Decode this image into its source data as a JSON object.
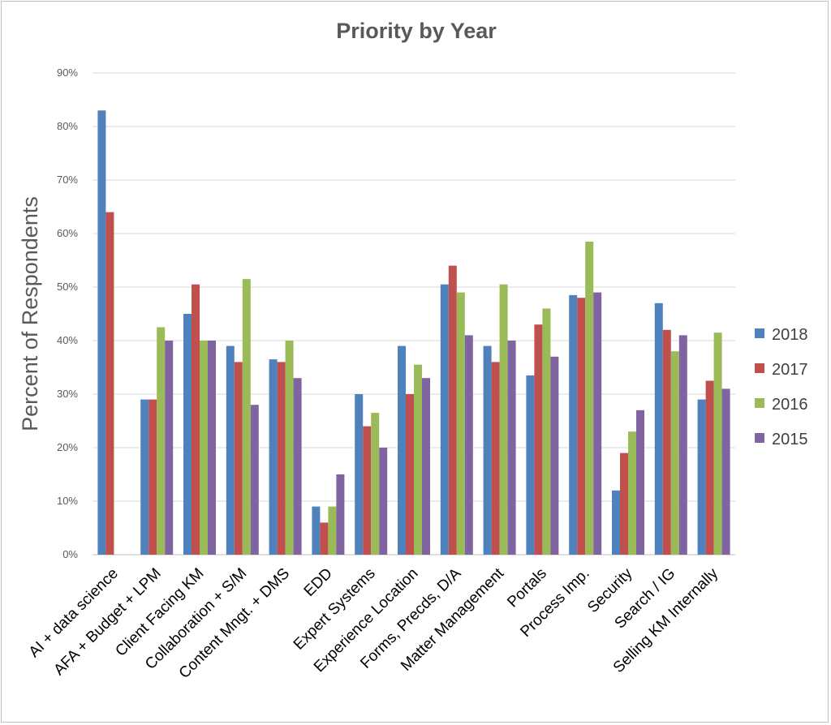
{
  "chart_data": {
    "type": "bar",
    "title": "Priority by Year",
    "ylabel": "Percent of Respondents",
    "xlabel": "",
    "ylim": [
      0,
      90
    ],
    "yticks": [
      "0%",
      "10%",
      "20%",
      "30%",
      "40%",
      "50%",
      "60%",
      "70%",
      "80%",
      "90%"
    ],
    "grid": true,
    "legend_position": "right",
    "categories": [
      "AI + data science",
      "AFA + Budget + LPM",
      "Client Facing KM",
      "Collaboration + S/M",
      "Content Mngt. + DMS",
      "EDD",
      "Expert Systems",
      "Experience Location",
      "Forms, Precds, D/A",
      "Matter Management",
      "Portals",
      "Process Imp.",
      "Security",
      "Search / IG",
      "Selling KM Internally"
    ],
    "series": [
      {
        "name": "2018",
        "color": "#4f81bd",
        "values": [
          83,
          29,
          45,
          39,
          36.5,
          9,
          30,
          39,
          50.5,
          39,
          33.5,
          48.5,
          12,
          47,
          29
        ]
      },
      {
        "name": "2017",
        "color": "#c0504d",
        "values": [
          64,
          29,
          50.5,
          36,
          36,
          6,
          24,
          30,
          54,
          36,
          43,
          48,
          19,
          42,
          32.5
        ]
      },
      {
        "name": "2016",
        "color": "#9bbb59",
        "values": [
          null,
          42.5,
          40,
          51.5,
          40,
          9,
          26.5,
          35.5,
          49,
          50.5,
          46,
          58.5,
          23,
          38,
          41.5
        ]
      },
      {
        "name": "2015",
        "color": "#8064a2",
        "values": [
          null,
          40,
          40,
          28,
          33,
          15,
          20,
          33,
          41,
          40,
          37,
          49,
          27,
          41,
          31
        ]
      }
    ]
  }
}
